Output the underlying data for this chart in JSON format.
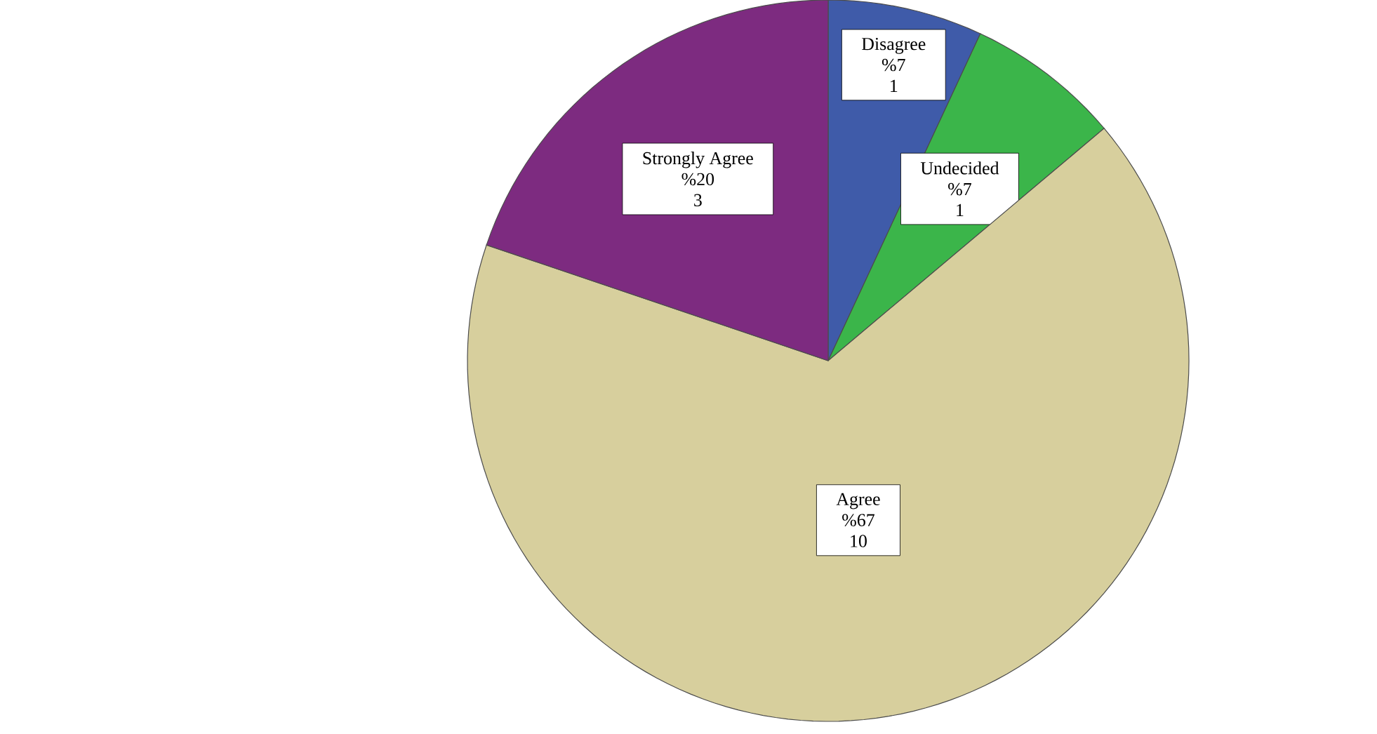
{
  "chart_data": {
    "type": "pie",
    "categories": [
      "Disagree",
      "Undecided",
      "Agree",
      "Strongly Agree"
    ],
    "values": [
      7,
      7,
      67,
      20
    ],
    "colors": [
      "#3f5ba9",
      "#3bb54a",
      "#d7cf9d",
      "#7d2b80"
    ],
    "value_labels": [
      "%7",
      "%7",
      "%67",
      "%20"
    ],
    "annotations": [
      "1",
      "1",
      "10",
      "3"
    ]
  }
}
